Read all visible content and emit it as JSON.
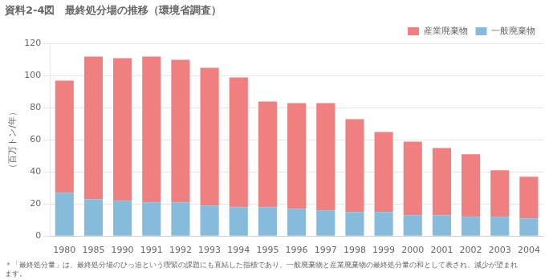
{
  "chart_data": {
    "type": "bar",
    "stacked": true,
    "title": "資料2-4図　最終処分場の推移（環境省調査）",
    "ylabel": "（百万トン/年）",
    "annotations": [
      "＊「最終処分量」は、最終処分場のひっ迫という喫緊の課題にも直結した指標であり、一般廃棄物と産業廃棄物の最終処分量の和として表され、減少が望まれます。"
    ],
    "categories": [
      "1980",
      "1985",
      "1990",
      "1991",
      "1992",
      "1993",
      "1994",
      "1995",
      "1996",
      "1997",
      "1998",
      "1999",
      "2000",
      "2001",
      "2002",
      "2003",
      "2004"
    ],
    "series": [
      {
        "name": "一般廃棄物",
        "color": "#87BBDB",
        "values": [
          27,
          23,
          22,
          21,
          21,
          19,
          18,
          18,
          17,
          16,
          15,
          15,
          13,
          13,
          12,
          12,
          11
        ]
      },
      {
        "name": "産業廃棄物",
        "color": "#F08080",
        "values": [
          70,
          89,
          89,
          91,
          89,
          86,
          81,
          66,
          66,
          67,
          58,
          50,
          46,
          42,
          39,
          29,
          26
        ]
      }
    ],
    "ylim": [
      0,
      120
    ],
    "yticks": [
      0,
      20,
      40,
      60,
      80,
      100,
      120
    ],
    "grid": true,
    "legend": "upper right"
  }
}
